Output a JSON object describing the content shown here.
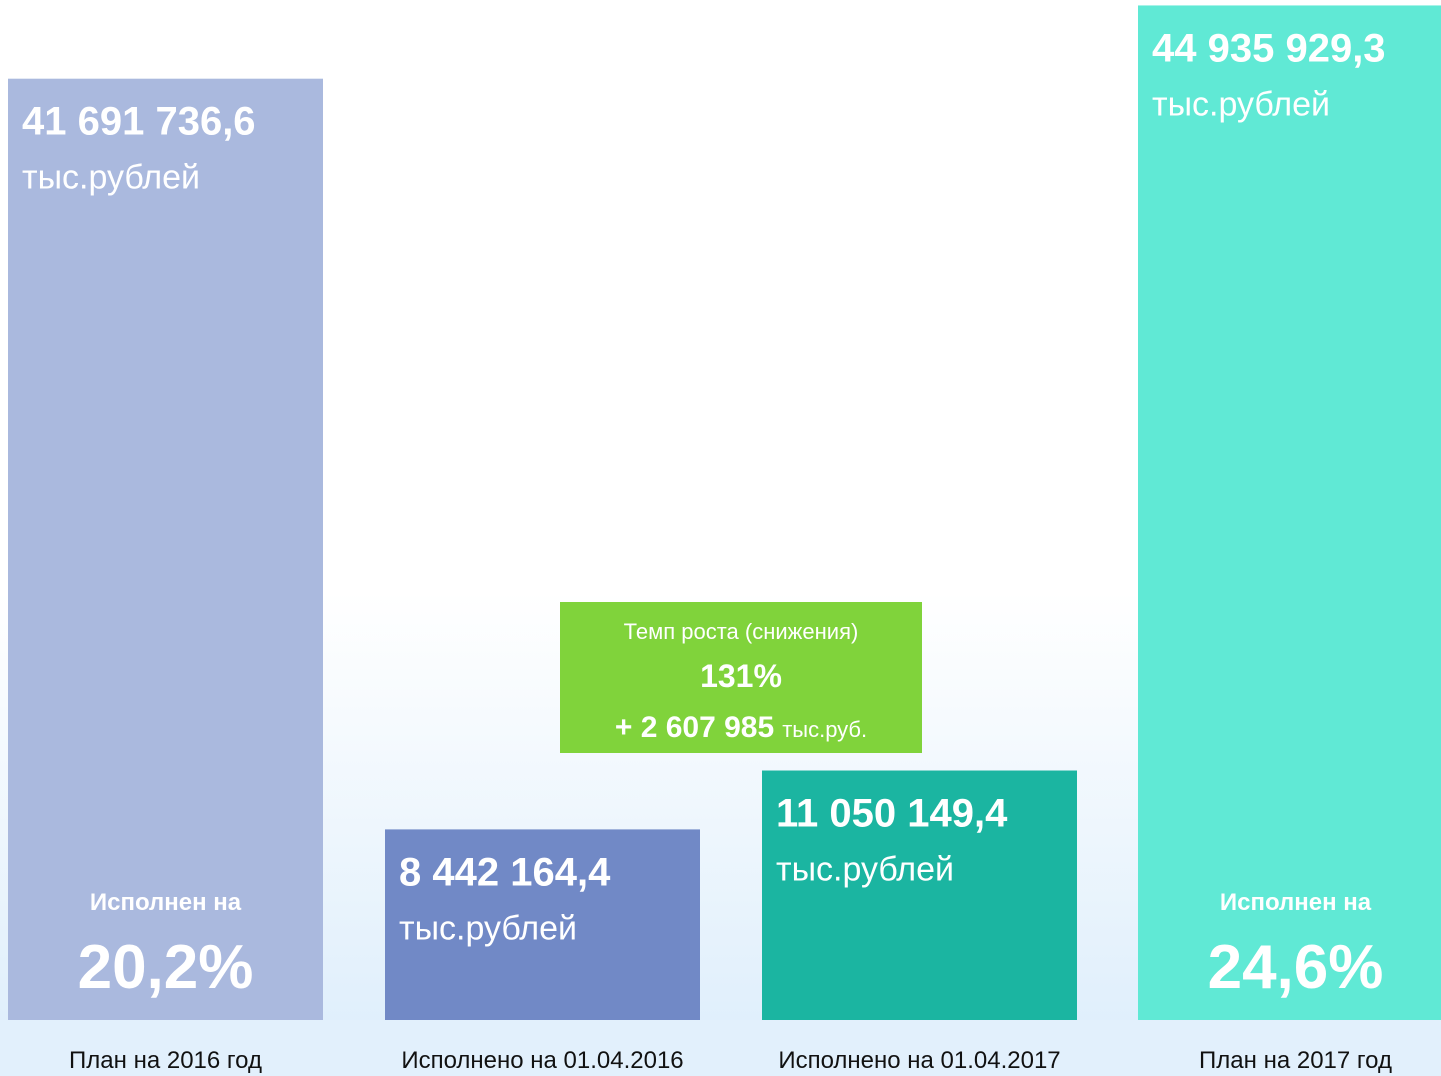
{
  "chart_data": {
    "type": "bar",
    "categories": [
      "План на 2016 год",
      "Исполнено на 01.04.2016",
      "Исполнено на 01.04.2017",
      "План на 2017 год"
    ],
    "values": [
      41691736.6,
      8442164.4,
      11050149.4,
      44935929.3
    ],
    "value_labels": [
      "41 691 736,6",
      "8 442 164,4",
      "11 050 149,4",
      "44 935 929,3"
    ],
    "value_unit": "тыс.рублей",
    "colors": [
      "#aab9de",
      "#7189c6",
      "#1bb5a1",
      "#60e9d5"
    ],
    "ylim": [
      0,
      45000000
    ],
    "execution_caption": "Исполнен на",
    "execution_pct": [
      20.2,
      null,
      null,
      24.6
    ],
    "execution_pct_labels": [
      "20,2%",
      null,
      null,
      "24,6%"
    ],
    "growth": {
      "title": "Темп роста (снижения)",
      "rate": 131,
      "rate_label": "131%",
      "delta": 2607985,
      "delta_label": "+ 2 607 985",
      "delta_unit": "тыс.руб.",
      "color": "#80d33b"
    }
  }
}
